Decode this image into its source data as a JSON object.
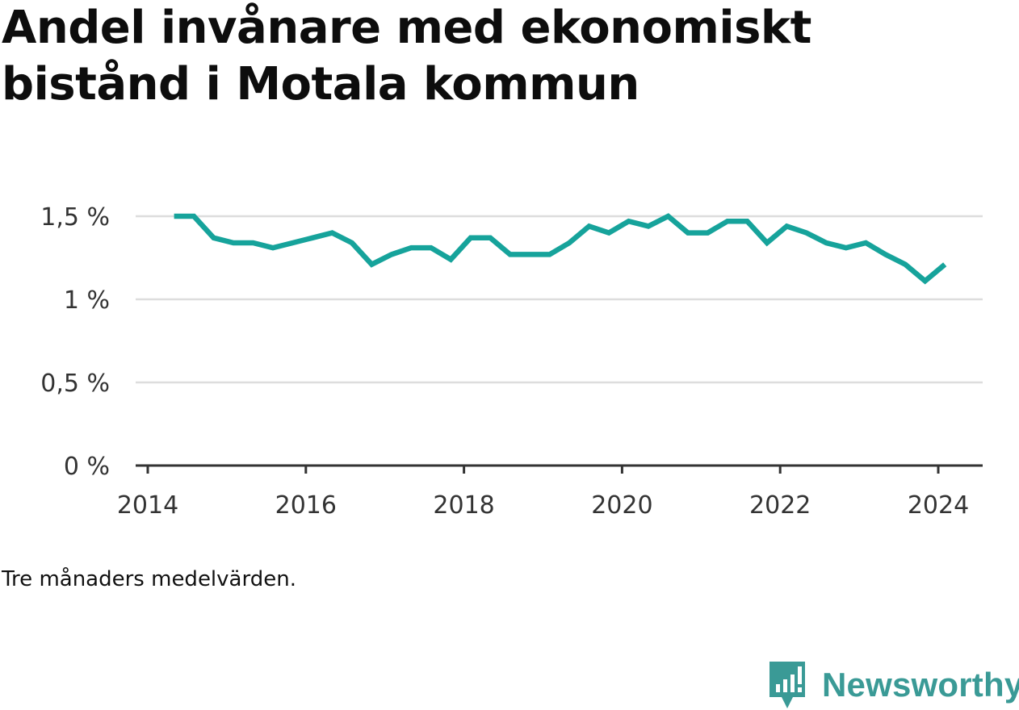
{
  "title": "Andel invånare med ekonomiskt bistånd i Motala kommun",
  "caption": "Tre månaders medelvärden.",
  "brand": {
    "name": "Newsworthy",
    "icon": "newsworthy-logo-icon",
    "color": "#3a9a96"
  },
  "colors": {
    "line": "#16a39b",
    "grid": "#dddddd",
    "axis": "#333333",
    "text": "#333333"
  },
  "chart_data": {
    "type": "line",
    "title": "Andel invånare med ekonomiskt bistånd i Motala kommun",
    "xlabel": "",
    "ylabel": "",
    "x_ticks": [
      "2014",
      "2016",
      "2018",
      "2020",
      "2022",
      "2024"
    ],
    "y_ticks": [
      "0 %",
      "0,5 %",
      "1 %",
      "1,5 %"
    ],
    "ylim": [
      0,
      1.5
    ],
    "grid": true,
    "series": [
      {
        "x": [
          "2014-05",
          "2014-08",
          "2014-11",
          "2015-02",
          "2015-05",
          "2015-08",
          "2015-11",
          "2016-02",
          "2016-05",
          "2016-08",
          "2016-11",
          "2017-02",
          "2017-05",
          "2017-08",
          "2017-11",
          "2018-02",
          "2018-05",
          "2018-08",
          "2018-11",
          "2019-02",
          "2019-05",
          "2019-08",
          "2019-11",
          "2020-02",
          "2020-05",
          "2020-08",
          "2020-11",
          "2021-02",
          "2021-05",
          "2021-08",
          "2021-11",
          "2022-02",
          "2022-05",
          "2022-08",
          "2022-11",
          "2023-02",
          "2023-05",
          "2023-08",
          "2023-11",
          "2024-02"
        ],
        "values": [
          1.5,
          1.5,
          1.37,
          1.34,
          1.34,
          1.31,
          1.34,
          1.37,
          1.4,
          1.34,
          1.21,
          1.27,
          1.31,
          1.31,
          1.24,
          1.37,
          1.37,
          1.27,
          1.27,
          1.27,
          1.34,
          1.44,
          1.4,
          1.47,
          1.44,
          1.5,
          1.4,
          1.4,
          1.47,
          1.47,
          1.34,
          1.44,
          1.4,
          1.34,
          1.31,
          1.34,
          1.27,
          1.21,
          1.11,
          1.21
        ]
      }
    ]
  }
}
